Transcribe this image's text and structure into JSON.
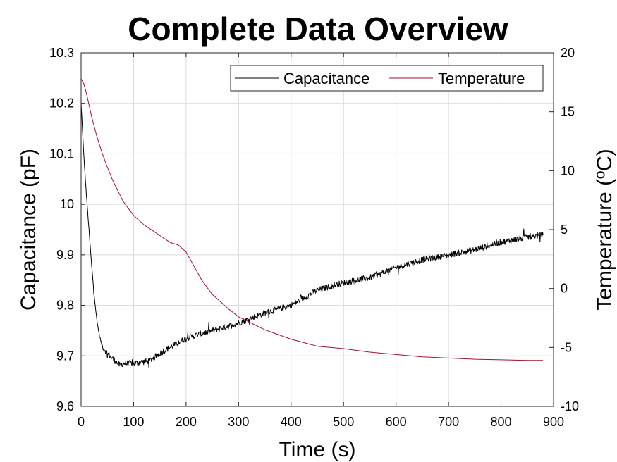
{
  "chart_data": {
    "type": "line",
    "title": "Complete Data Overview",
    "xlabel": "Time (s)",
    "ylabel_left": "Capacitance (pF)",
    "ylabel_right": "Temperature (ºC)",
    "xlim": [
      0,
      900
    ],
    "ylim_left": [
      9.6,
      10.3
    ],
    "ylim_right": [
      -10,
      20
    ],
    "xticks": [
      "0",
      "100",
      "200",
      "300",
      "400",
      "500",
      "600",
      "700",
      "800",
      "900"
    ],
    "yticks_left": [
      "9.6",
      "9.7",
      "9.8",
      "9.9",
      "10",
      "10.1",
      "10.2",
      "10.3"
    ],
    "yticks_right": [
      "-10",
      "-5",
      "0",
      "5",
      "10",
      "15",
      "20"
    ],
    "grid": true,
    "legend_position": "top-right",
    "series": [
      {
        "name": "Capacitance",
        "axis": "left",
        "color": "#000000",
        "x": [
          0,
          5,
          10,
          15,
          20,
          25,
          30,
          35,
          40,
          50,
          60,
          70,
          75,
          80,
          100,
          130,
          150,
          200,
          250,
          300,
          350,
          400,
          450,
          500,
          550,
          600,
          650,
          700,
          750,
          800,
          850,
          880
        ],
        "y": [
          10.2,
          10.1,
          10.02,
          9.95,
          9.88,
          9.82,
          9.77,
          9.74,
          9.72,
          9.705,
          9.695,
          9.685,
          9.68,
          9.685,
          9.685,
          9.69,
          9.705,
          9.735,
          9.75,
          9.765,
          9.785,
          9.8,
          9.83,
          9.845,
          9.855,
          9.875,
          9.89,
          9.9,
          9.91,
          9.925,
          9.935,
          9.94
        ]
      },
      {
        "name": "Temperature",
        "axis": "right",
        "color": "#a2142f",
        "x": [
          0,
          5,
          10,
          15,
          20,
          30,
          40,
          50,
          60,
          80,
          100,
          120,
          150,
          170,
          185,
          200,
          210,
          230,
          250,
          280,
          300,
          350,
          400,
          450,
          500,
          550,
          600,
          650,
          700,
          750,
          800,
          850,
          880
        ],
        "y": [
          17.8,
          17.4,
          16.6,
          15.6,
          14.6,
          12.9,
          11.5,
          10.3,
          9.2,
          7.4,
          6.2,
          5.4,
          4.5,
          3.9,
          3.7,
          3.1,
          2.3,
          0.7,
          -0.5,
          -1.7,
          -2.4,
          -3.5,
          -4.3,
          -4.9,
          -5.1,
          -5.4,
          -5.6,
          -5.8,
          -5.9,
          -6.0,
          -6.05,
          -6.1,
          -6.1
        ]
      }
    ]
  }
}
